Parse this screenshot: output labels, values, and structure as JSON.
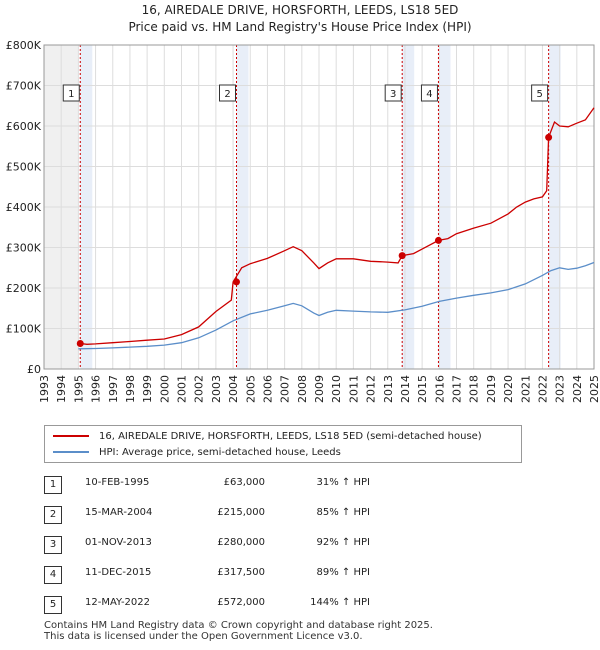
{
  "header": {
    "title": "16, AIREDALE DRIVE, HORSFORTH, LEEDS, LS18 5ED",
    "subtitle": "Price paid vs. HM Land Registry's House Price Index (HPI)"
  },
  "colors": {
    "price": "#cc0000",
    "hpi": "#5b8ec9",
    "band": "#e8eef8",
    "marker_line": "#cc0000"
  },
  "chart_data": {
    "type": "line",
    "title": "16, AIREDALE DRIVE, HORSFORTH, LEEDS, LS18 5ED",
    "xlim": [
      1993,
      2025
    ],
    "ylim": [
      0,
      800000
    ],
    "x_ticks": [
      "1993",
      "1994",
      "1995",
      "1996",
      "1997",
      "1998",
      "1999",
      "2000",
      "2001",
      "2002",
      "2003",
      "2004",
      "2005",
      "2006",
      "2007",
      "2008",
      "2009",
      "2010",
      "2011",
      "2012",
      "2013",
      "2014",
      "2015",
      "2016",
      "2017",
      "2018",
      "2019",
      "2020",
      "2021",
      "2022",
      "2023",
      "2024",
      "2025"
    ],
    "y_ticks": [
      {
        "value": 0,
        "label": "£0"
      },
      {
        "value": 100000,
        "label": "£100K"
      },
      {
        "value": 200000,
        "label": "£200K"
      },
      {
        "value": 300000,
        "label": "£300K"
      },
      {
        "value": 400000,
        "label": "£400K"
      },
      {
        "value": 500000,
        "label": "£500K"
      },
      {
        "value": 600000,
        "label": "£600K"
      },
      {
        "value": 700000,
        "label": "£700K"
      },
      {
        "value": 800000,
        "label": "£800K"
      }
    ],
    "grid": true,
    "legend_position": "below",
    "series": [
      {
        "name": "16, AIREDALE DRIVE, HORSFORTH, LEEDS, LS18 5ED (semi-detached house)",
        "color": "#cc0000",
        "points": [
          [
            1995.11,
            63000
          ],
          [
            1995.5,
            61000
          ],
          [
            1996,
            62000
          ],
          [
            1997,
            65000
          ],
          [
            1998,
            68000
          ],
          [
            1999,
            71000
          ],
          [
            2000,
            74000
          ],
          [
            2001,
            85000
          ],
          [
            2002,
            104000
          ],
          [
            2003,
            142000
          ],
          [
            2003.9,
            170000
          ],
          [
            2004.0,
            215000
          ],
          [
            2004.5,
            250000
          ],
          [
            2005,
            260000
          ],
          [
            2006,
            273000
          ],
          [
            2007,
            292000
          ],
          [
            2007.5,
            302000
          ],
          [
            2008,
            292000
          ],
          [
            2008.7,
            262000
          ],
          [
            2009,
            248000
          ],
          [
            2009.5,
            262000
          ],
          [
            2010,
            272000
          ],
          [
            2011,
            272000
          ],
          [
            2012,
            266000
          ],
          [
            2013,
            264000
          ],
          [
            2013.6,
            262000
          ],
          [
            2013.84,
            280000
          ],
          [
            2014.5,
            285000
          ],
          [
            2015,
            296000
          ],
          [
            2015.95,
            317500
          ],
          [
            2016.5,
            322000
          ],
          [
            2017,
            334000
          ],
          [
            2018,
            348000
          ],
          [
            2019,
            360000
          ],
          [
            2020,
            383000
          ],
          [
            2020.5,
            400000
          ],
          [
            2021,
            412000
          ],
          [
            2021.5,
            420000
          ],
          [
            2022.0,
            425000
          ],
          [
            2022.25,
            440000
          ],
          [
            2022.36,
            572000
          ],
          [
            2022.7,
            610000
          ],
          [
            2023,
            600000
          ],
          [
            2023.5,
            598000
          ],
          [
            2024,
            607000
          ],
          [
            2024.5,
            615000
          ],
          [
            2025,
            645000
          ]
        ]
      },
      {
        "name": "HPI: Average price, semi-detached house, Leeds",
        "color": "#5b8ec9",
        "points": [
          [
            1995,
            50000
          ],
          [
            1996,
            50500
          ],
          [
            1997,
            52000
          ],
          [
            1998,
            54000
          ],
          [
            1999,
            56000
          ],
          [
            2000,
            59000
          ],
          [
            2001,
            65000
          ],
          [
            2002,
            77000
          ],
          [
            2003,
            96000
          ],
          [
            2004,
            119000
          ],
          [
            2005,
            136000
          ],
          [
            2006,
            145000
          ],
          [
            2007,
            156000
          ],
          [
            2007.5,
            162000
          ],
          [
            2008,
            156000
          ],
          [
            2008.7,
            138000
          ],
          [
            2009,
            132000
          ],
          [
            2009.5,
            140000
          ],
          [
            2010,
            145000
          ],
          [
            2011,
            143000
          ],
          [
            2012,
            141000
          ],
          [
            2013,
            140000
          ],
          [
            2014,
            146000
          ],
          [
            2015,
            155000
          ],
          [
            2016,
            167000
          ],
          [
            2017,
            175000
          ],
          [
            2018,
            182000
          ],
          [
            2019,
            188000
          ],
          [
            2020,
            196000
          ],
          [
            2021,
            210000
          ],
          [
            2022,
            231000
          ],
          [
            2022.5,
            243000
          ],
          [
            2023,
            250000
          ],
          [
            2023.5,
            246000
          ],
          [
            2024,
            249000
          ],
          [
            2024.5,
            255000
          ],
          [
            2025,
            263000
          ]
        ]
      }
    ],
    "sales": [
      {
        "id": "1",
        "x": 1995.11,
        "price": 63000
      },
      {
        "id": "2",
        "x": 2004.2,
        "price": 215000
      },
      {
        "id": "3",
        "x": 2013.84,
        "price": 280000
      },
      {
        "id": "4",
        "x": 2015.95,
        "price": 317500
      },
      {
        "id": "5",
        "x": 2022.36,
        "price": 572000
      }
    ]
  },
  "legend": {
    "price_label": "16, AIREDALE DRIVE, HORSFORTH, LEEDS, LS18 5ED (semi-detached house)",
    "hpi_label": "HPI: Average price, semi-detached house, Leeds"
  },
  "table": [
    {
      "id": "1",
      "date": "10-FEB-1995",
      "price": "£63,000",
      "hpi": "31% ↑ HPI"
    },
    {
      "id": "2",
      "date": "15-MAR-2004",
      "price": "£215,000",
      "hpi": "85% ↑ HPI"
    },
    {
      "id": "3",
      "date": "01-NOV-2013",
      "price": "£280,000",
      "hpi": "92% ↑ HPI"
    },
    {
      "id": "4",
      "date": "11-DEC-2015",
      "price": "£317,500",
      "hpi": "89% ↑ HPI"
    },
    {
      "id": "5",
      "date": "12-MAY-2022",
      "price": "£572,000",
      "hpi": "144% ↑ HPI"
    }
  ],
  "footer": {
    "line1": "Contains HM Land Registry data © Crown copyright and database right 2025.",
    "line2": "This data is licensed under the Open Government Licence v3.0."
  }
}
